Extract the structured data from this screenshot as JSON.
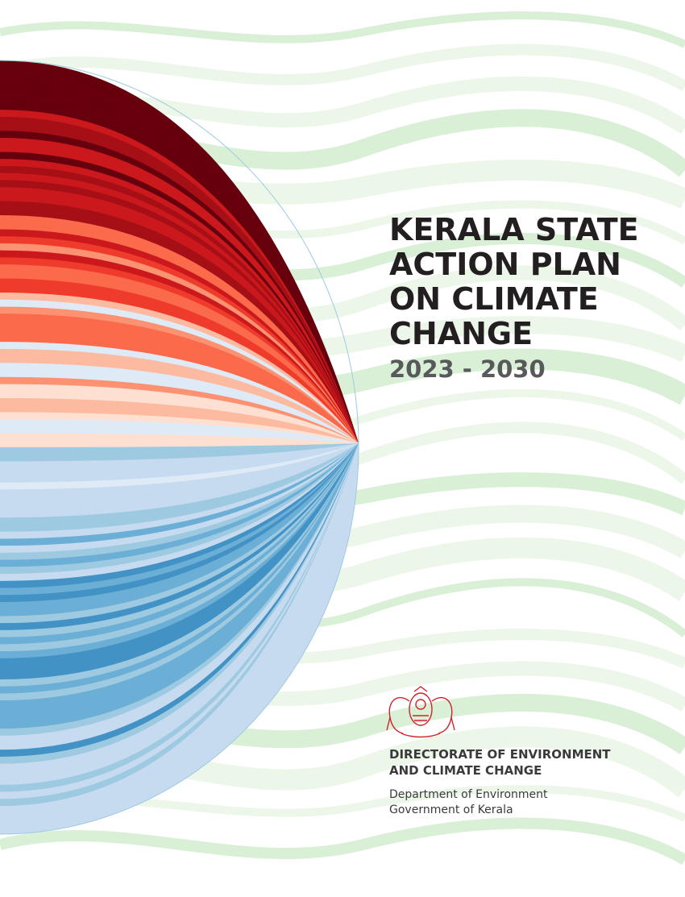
{
  "cover": {
    "title_lines": [
      "KERALA STATE",
      "ACTION PLAN",
      "ON CLIMATE",
      "CHANGE"
    ],
    "period": "2023 - 2030",
    "publisher_lines": [
      "DIRECTORATE OF ENVIRONMENT",
      "AND CLIMATE CHANGE"
    ],
    "department_lines": [
      "Department of Environment",
      "Government of Kerala"
    ]
  }
}
